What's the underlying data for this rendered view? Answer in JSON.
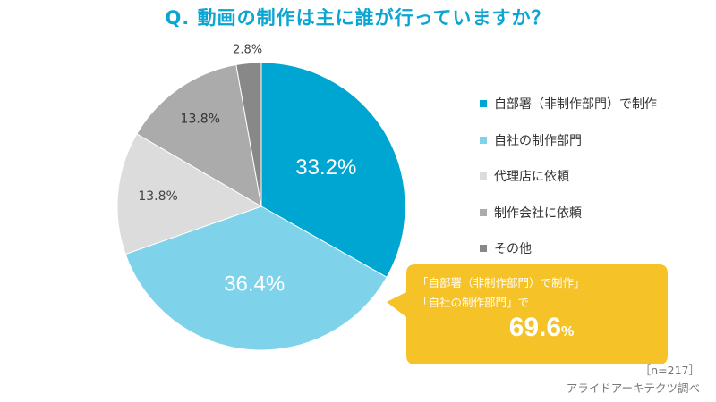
{
  "title": "Q. 動画の制作は主に誰が行っていますか？",
  "chart_data": {
    "type": "pie",
    "slices": [
      {
        "label": "自部署（非制作部門）で制作",
        "value": 33.2,
        "value_label": "33.2%",
        "color": "#00a6d2"
      },
      {
        "label": "自社の制作部門",
        "value": 36.4,
        "value_label": "36.4%",
        "color": "#7ed3ea"
      },
      {
        "label": "代理店に依頼",
        "value": 13.8,
        "value_label": "13.8%",
        "color": "#dcdcdc"
      },
      {
        "label": "制作会社に依頼",
        "value": 13.8,
        "value_label": "13.8%",
        "color": "#ababab"
      },
      {
        "label": "その他",
        "value": 2.8,
        "value_label": "2.8%",
        "color": "#888888"
      }
    ],
    "start": "12 o'clock",
    "direction": "clockwise",
    "legend_position": "right"
  },
  "callout": {
    "line1": "「自部署（非制作部門）で制作」",
    "line2": "「自社の制作部門」で",
    "total_value": "69.6",
    "total_unit": "%",
    "color": "#f5c228"
  },
  "footnote": {
    "sample": "［n=217］",
    "source": "アライドアーキテクツ調べ"
  }
}
